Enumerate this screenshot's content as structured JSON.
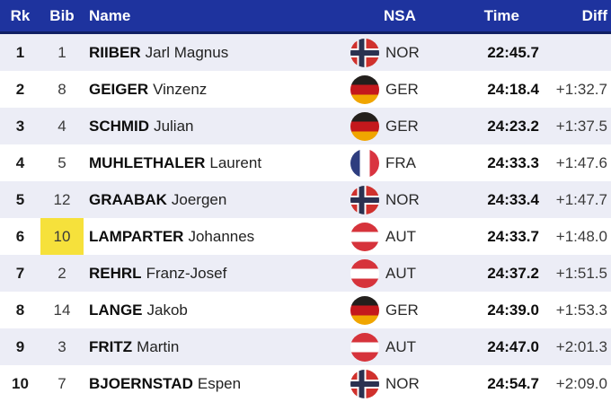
{
  "table": {
    "columns": [
      {
        "key": "rank",
        "label": "Rk"
      },
      {
        "key": "bib",
        "label": "Bib"
      },
      {
        "key": "name",
        "label": "Name"
      },
      {
        "key": "nsa",
        "label": "NSA"
      },
      {
        "key": "time",
        "label": "Time"
      },
      {
        "key": "diff",
        "label": "Diff"
      }
    ],
    "rows": [
      {
        "rank": "1",
        "bib": "1",
        "surname": "RIIBER",
        "given": "Jarl Magnus",
        "nsa": "NOR",
        "time": "22:45.7",
        "diff": "",
        "bib_highlight": false
      },
      {
        "rank": "2",
        "bib": "8",
        "surname": "GEIGER",
        "given": "Vinzenz",
        "nsa": "GER",
        "time": "24:18.4",
        "diff": "+1:32.7",
        "bib_highlight": false
      },
      {
        "rank": "3",
        "bib": "4",
        "surname": "SCHMID",
        "given": "Julian",
        "nsa": "GER",
        "time": "24:23.2",
        "diff": "+1:37.5",
        "bib_highlight": false
      },
      {
        "rank": "4",
        "bib": "5",
        "surname": "MUHLETHALER",
        "given": "Laurent",
        "nsa": "FRA",
        "time": "24:33.3",
        "diff": "+1:47.6",
        "bib_highlight": false
      },
      {
        "rank": "5",
        "bib": "12",
        "surname": "GRAABAK",
        "given": "Joergen",
        "nsa": "NOR",
        "time": "24:33.4",
        "diff": "+1:47.7",
        "bib_highlight": false
      },
      {
        "rank": "6",
        "bib": "10",
        "surname": "LAMPARTER",
        "given": "Johannes",
        "nsa": "AUT",
        "time": "24:33.7",
        "diff": "+1:48.0",
        "bib_highlight": true
      },
      {
        "rank": "7",
        "bib": "2",
        "surname": "REHRL",
        "given": "Franz-Josef",
        "nsa": "AUT",
        "time": "24:37.2",
        "diff": "+1:51.5",
        "bib_highlight": false
      },
      {
        "rank": "8",
        "bib": "14",
        "surname": "LANGE",
        "given": "Jakob",
        "nsa": "GER",
        "time": "24:39.0",
        "diff": "+1:53.3",
        "bib_highlight": false
      },
      {
        "rank": "9",
        "bib": "3",
        "surname": "FRITZ",
        "given": "Martin",
        "nsa": "AUT",
        "time": "24:47.0",
        "diff": "+2:01.3",
        "bib_highlight": false
      },
      {
        "rank": "10",
        "bib": "7",
        "surname": "BJOERNSTAD",
        "given": "Espen",
        "nsa": "NOR",
        "time": "24:54.7",
        "diff": "+2:09.0",
        "bib_highlight": false
      }
    ]
  },
  "flags": {
    "NOR": {
      "type": "nordic_cross",
      "base": "#d0312d",
      "cross": "#2b3150",
      "outline": "#ffffff"
    },
    "GER": {
      "type": "h_stripes",
      "colors": [
        "#231f1c",
        "#c4181c",
        "#f0a500"
      ]
    },
    "FRA": {
      "type": "v_stripes",
      "colors": [
        "#2e3d7f",
        "#ffffff",
        "#d93440"
      ]
    },
    "AUT": {
      "type": "h_stripes",
      "colors": [
        "#d6333b",
        "#ffffff",
        "#d6333b"
      ]
    }
  },
  "colors": {
    "header_bg": "#1e339e",
    "header_border": "#101f63",
    "row_odd_bg": "#ecedf6",
    "row_even_bg": "#ffffff",
    "bib_highlight_bg": "#f6e13b"
  }
}
